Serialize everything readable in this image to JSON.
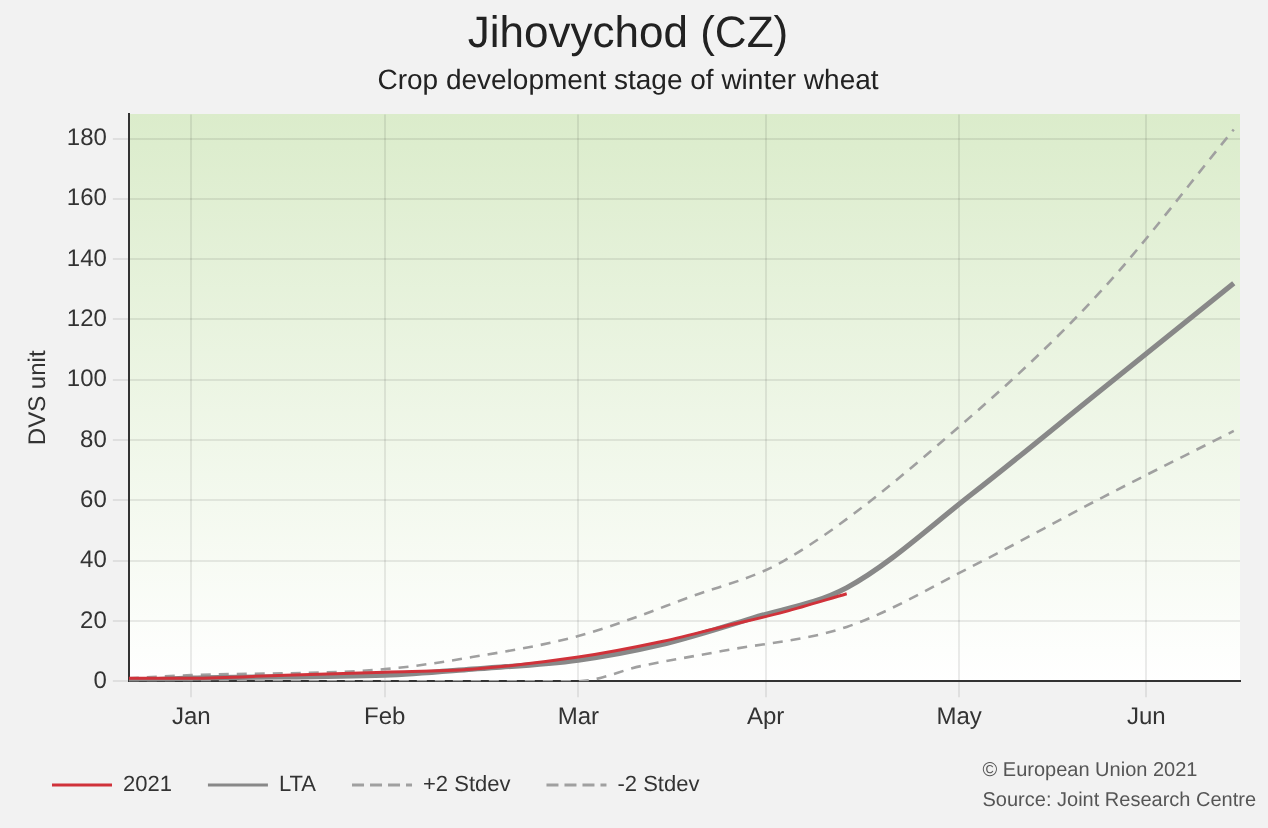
{
  "chart_data": {
    "type": "line",
    "title": "Jihovychod (CZ)",
    "subtitle": "Crop development stage of winter wheat",
    "ylabel": "DVS unit",
    "xlim": [
      "--01-05",
      "--07-02"
    ],
    "xticks": [
      {
        "value": "--01-15",
        "label": "Jan"
      },
      {
        "value": "--02-15",
        "label": "Feb"
      },
      {
        "value": "--03-18",
        "label": "Mar"
      },
      {
        "value": "--04-17",
        "label": "Apr"
      },
      {
        "value": "--05-18",
        "label": "May"
      },
      {
        "value": "--06-17",
        "label": "Jun"
      }
    ],
    "ylim": [
      0,
      188
    ],
    "yticks": [
      0,
      20,
      40,
      60,
      80,
      100,
      120,
      140,
      160,
      180
    ],
    "grid": true,
    "legend": "bottom",
    "marker": "none",
    "series": [
      {
        "name": "2021",
        "color": "#d0323a",
        "line_style": "solid",
        "x": [
          "--01-05",
          "--01-15",
          "--01-30",
          "--02-15",
          "--03-01",
          "--03-18",
          "--03-31",
          "--04-10",
          "--04-20",
          "--04-30"
        ],
        "values": [
          1,
          1,
          2,
          3,
          4,
          8,
          13,
          18,
          23,
          29
        ]
      },
      {
        "name": "LTA",
        "color": "#888888",
        "line_style": "solid",
        "x": [
          "--01-05",
          "--01-15",
          "--02-15",
          "--03-01",
          "--03-18",
          "--03-31",
          "--04-15",
          "--04-30",
          "--05-20",
          "--06-10",
          "--07-01"
        ],
        "values": [
          0,
          1,
          2,
          4,
          7,
          12,
          21,
          31,
          62,
          97,
          132
        ]
      },
      {
        "name": "+2 Stdev",
        "color": "#a0a0a0",
        "line_style": "dashed",
        "x": [
          "--01-05",
          "--01-15",
          "--02-15",
          "--03-01",
          "--03-18",
          "--04-05",
          "--04-20",
          "--05-20",
          "--06-10",
          "--07-01"
        ],
        "values": [
          1,
          2,
          4,
          8,
          15,
          28,
          40,
          88,
          130,
          183
        ]
      },
      {
        "name": "-2 Stdev",
        "color": "#a0a0a0",
        "line_style": "dashed",
        "x": [
          "--01-05",
          "--03-18",
          "--03-28",
          "--04-10",
          "--04-30",
          "--05-20",
          "--06-10",
          "--07-01"
        ],
        "values": [
          0,
          0,
          5,
          10,
          18,
          38,
          61,
          83
        ]
      }
    ],
    "annotations": [
      "© European Union 2021",
      "Source: Joint Research Centre"
    ]
  }
}
